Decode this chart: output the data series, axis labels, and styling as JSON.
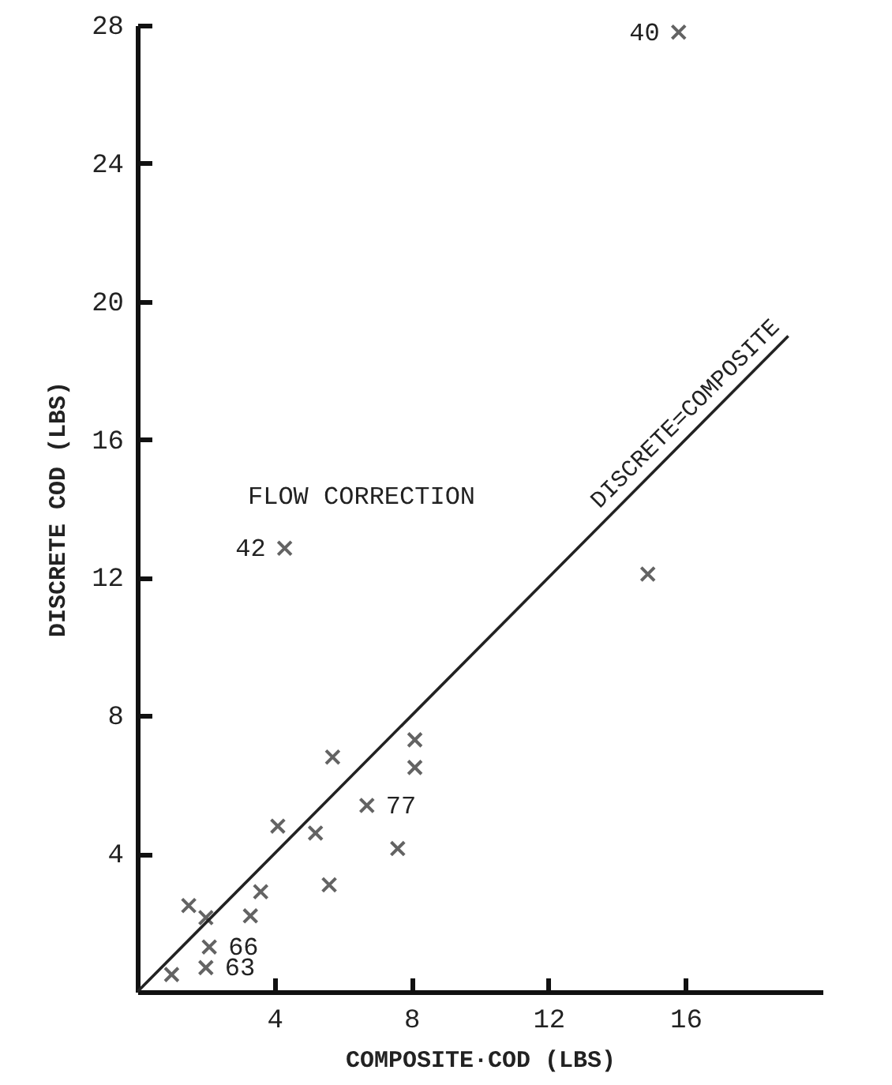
{
  "chart_data": {
    "type": "scatter",
    "xlabel": "COMPOSITE·COD (LBS)",
    "ylabel": "DISCRETE COD (LBS)",
    "xlim": [
      0,
      20
    ],
    "ylim": [
      0,
      28
    ],
    "xticks": [
      4,
      8,
      12,
      16
    ],
    "yticks": [
      4,
      8,
      12,
      16,
      20,
      24,
      28
    ],
    "grid": false,
    "marker": "cross",
    "series": [
      {
        "color": "#222222",
        "x": [
          1.0,
          1.5,
          2.0,
          2.0,
          2.1,
          3.3,
          3.6,
          4.1,
          5.2,
          5.6,
          5.7,
          6.7,
          7.6,
          8.1,
          8.1,
          14.9,
          4.3,
          15.8
        ],
        "values": [
          0.5,
          2.5,
          2.15,
          0.7,
          1.3,
          2.2,
          2.9,
          4.8,
          4.6,
          3.1,
          6.8,
          5.4,
          4.15,
          7.3,
          6.5,
          12.1,
          12.85,
          27.8
        ]
      },
      {
        "type": "line",
        "name": "DISCRETE=COMPOSITE",
        "color": "#222222",
        "marker": "none",
        "x": [
          0,
          19
        ],
        "values": [
          0,
          19
        ]
      }
    ],
    "annotations": [
      "FLOW CORRECTION",
      {
        "text": "42",
        "x": 4.3,
        "y": 12.85
      },
      {
        "text": "40",
        "x": 15.8,
        "y": 27.8
      },
      {
        "text": "77",
        "x": 6.7,
        "y": 5.4
      },
      {
        "text": "66",
        "x": 2.1,
        "y": 1.3
      },
      {
        "text": "63",
        "x": 2.0,
        "y": 0.7
      }
    ]
  }
}
